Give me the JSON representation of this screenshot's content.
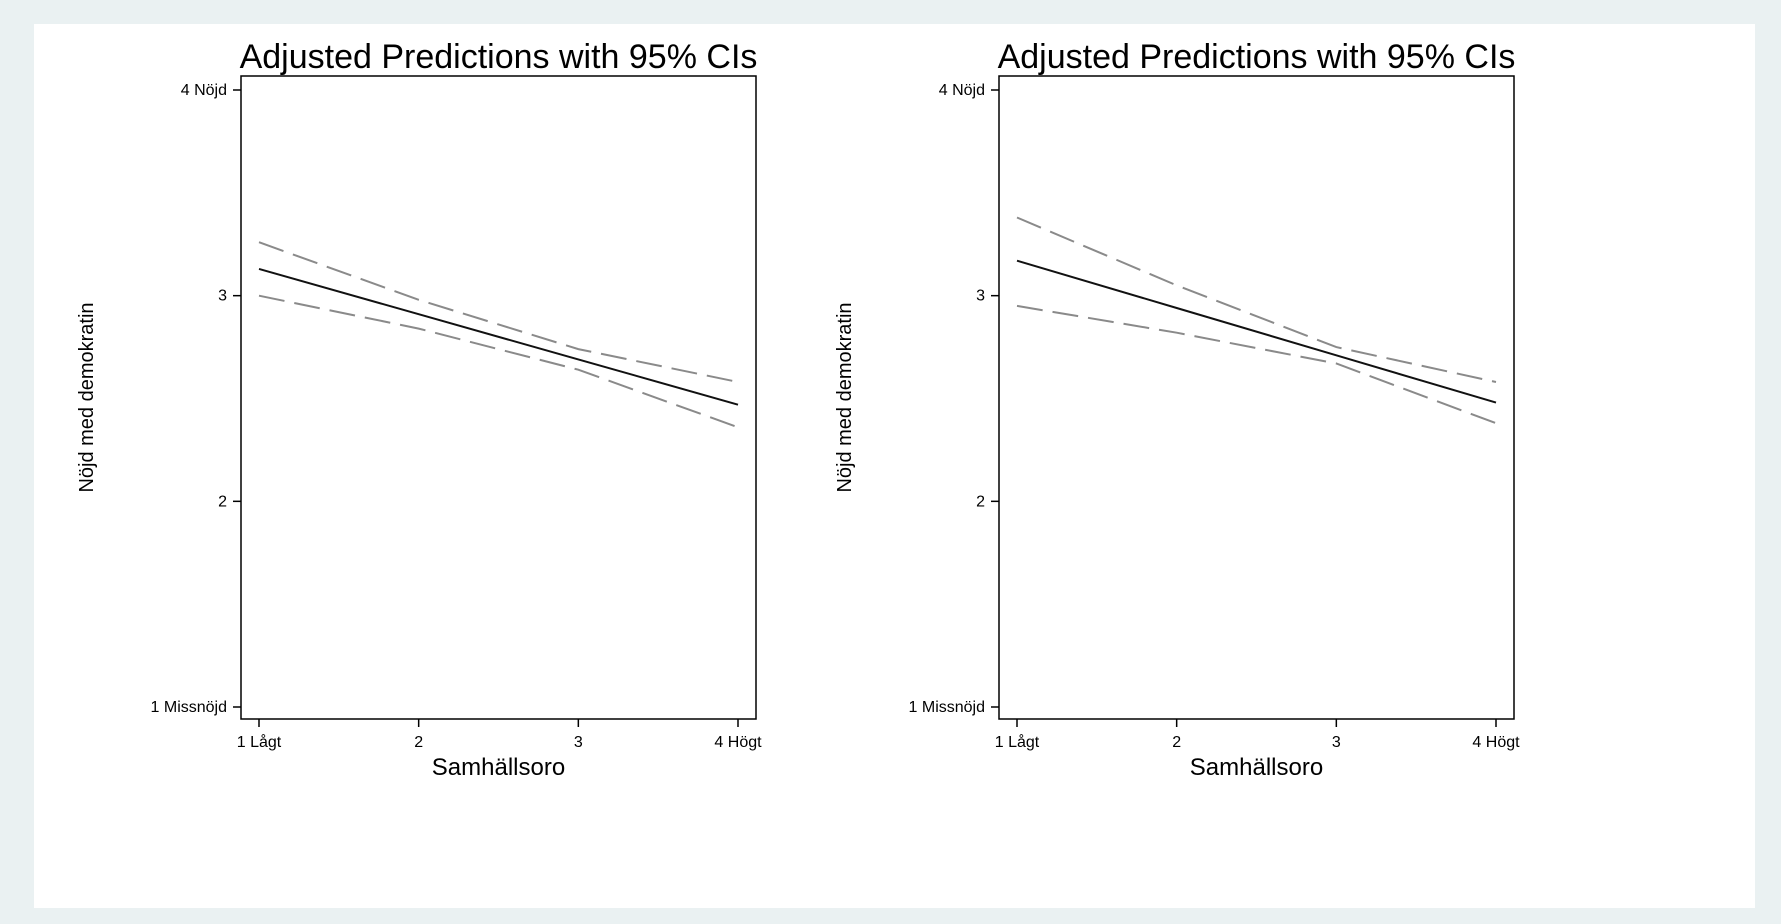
{
  "chart_data": [
    {
      "type": "line",
      "title": "Adjusted Predictions with 95% CIs",
      "xlabel": "Samhällsoro",
      "ylabel": "Nöjd med demokratin",
      "x": [
        1,
        2,
        3,
        4
      ],
      "xtick_labels": [
        "1 Lågt",
        "2",
        "3",
        "4 Högt"
      ],
      "ytick_values": [
        1,
        2,
        3,
        4
      ],
      "ytick_labels": [
        "1 Missnöjd",
        "2",
        "3",
        "4 Nöjd"
      ],
      "xlim": [
        1,
        4
      ],
      "ylim": [
        1,
        4
      ],
      "grid": false,
      "series": [
        {
          "role": "prediction",
          "style": "solid",
          "values": [
            3.13,
            2.91,
            2.69,
            2.47
          ]
        },
        {
          "role": "upper-ci",
          "style": "dashed",
          "values": [
            3.26,
            2.98,
            2.74,
            2.58
          ]
        },
        {
          "role": "lower-ci",
          "style": "dashed",
          "values": [
            3.0,
            2.84,
            2.64,
            2.36
          ]
        }
      ]
    },
    {
      "type": "line",
      "title": "Adjusted Predictions with 95% CIs",
      "xlabel": "Samhällsoro",
      "ylabel": "Nöjd med demokratin",
      "x": [
        1,
        2,
        3,
        4
      ],
      "xtick_labels": [
        "1 Lågt",
        "2",
        "3",
        "4 Högt"
      ],
      "ytick_values": [
        1,
        2,
        3,
        4
      ],
      "ytick_labels": [
        "1 Missnöjd",
        "2",
        "3",
        "4 Nöjd"
      ],
      "xlim": [
        1,
        4
      ],
      "ylim": [
        1,
        4
      ],
      "grid": false,
      "series": [
        {
          "role": "prediction",
          "style": "solid",
          "values": [
            3.17,
            2.94,
            2.71,
            2.48
          ]
        },
        {
          "role": "upper-ci",
          "style": "dashed",
          "values": [
            3.38,
            3.05,
            2.75,
            2.58
          ]
        },
        {
          "role": "lower-ci",
          "style": "dashed",
          "values": [
            2.95,
            2.82,
            2.67,
            2.38
          ]
        }
      ]
    }
  ],
  "colors": {
    "page_background": "#eaf1f2",
    "figure_background": "#ffffff",
    "prediction_line": "#111111",
    "ci_line": "#8a8a8a",
    "axis": "#000000"
  }
}
